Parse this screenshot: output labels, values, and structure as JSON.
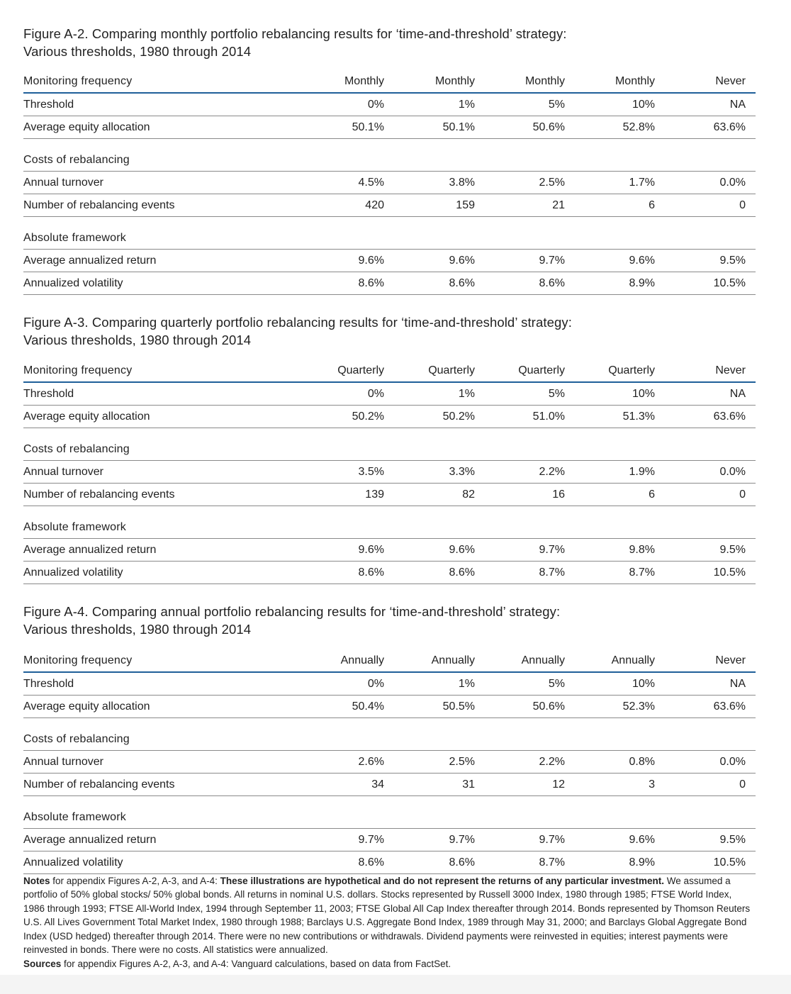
{
  "figures": [
    {
      "title_line1": "Figure A-2. Comparing monthly portfolio rebalancing results for ‘time-and-threshold’ strategy:",
      "title_line2": "Various thresholds, 1980 through 2014",
      "header": {
        "label": "Monitoring frequency",
        "cols": [
          "Monthly",
          "Monthly",
          "Monthly",
          "Monthly",
          "Never"
        ]
      },
      "threshold": {
        "label": "Threshold",
        "cols": [
          "0%",
          "1%",
          "5%",
          "10%",
          "NA"
        ]
      },
      "equity": {
        "label": "Average equity allocation",
        "cols": [
          "50.1%",
          "50.1%",
          "50.6%",
          "52.8%",
          "63.6%"
        ]
      },
      "costs_label": "Costs of rebalancing",
      "turnover": {
        "label": "Annual turnover",
        "cols": [
          "4.5%",
          "3.8%",
          "2.5%",
          "1.7%",
          "0.0%"
        ]
      },
      "events": {
        "label": "Number of rebalancing events",
        "cols": [
          "420",
          "159",
          "21",
          "6",
          "0"
        ]
      },
      "abs_label": "Absolute framework",
      "return": {
        "label": "Average annualized return",
        "cols": [
          "9.6%",
          "9.6%",
          "9.7%",
          "9.6%",
          "9.5%"
        ]
      },
      "volatility": {
        "label": "Annualized volatility",
        "cols": [
          "8.6%",
          "8.6%",
          "8.6%",
          "8.9%",
          "10.5%"
        ]
      }
    },
    {
      "title_line1": "Figure A-3. Comparing quarterly portfolio rebalancing results for ‘time-and-threshold’ strategy:",
      "title_line2": "Various thresholds, 1980 through 2014",
      "header": {
        "label": "Monitoring frequency",
        "cols": [
          "Quarterly",
          "Quarterly",
          "Quarterly",
          "Quarterly",
          "Never"
        ]
      },
      "threshold": {
        "label": "Threshold",
        "cols": [
          "0%",
          "1%",
          "5%",
          "10%",
          "NA"
        ]
      },
      "equity": {
        "label": "Average equity allocation",
        "cols": [
          "50.2%",
          "50.2%",
          "51.0%",
          "51.3%",
          "63.6%"
        ]
      },
      "costs_label": "Costs of rebalancing",
      "turnover": {
        "label": "Annual turnover",
        "cols": [
          "3.5%",
          "3.3%",
          "2.2%",
          "1.9%",
          "0.0%"
        ]
      },
      "events": {
        "label": "Number of rebalancing events",
        "cols": [
          "139",
          "82",
          "16",
          "6",
          "0"
        ]
      },
      "abs_label": "Absolute framework",
      "return": {
        "label": "Average annualized return",
        "cols": [
          "9.6%",
          "9.6%",
          "9.7%",
          "9.8%",
          "9.5%"
        ]
      },
      "volatility": {
        "label": "Annualized volatility",
        "cols": [
          "8.6%",
          "8.6%",
          "8.7%",
          "8.7%",
          "10.5%"
        ]
      }
    },
    {
      "title_line1": "Figure A-4. Comparing annual portfolio rebalancing results for ‘time-and-threshold’ strategy:",
      "title_line2": "Various thresholds, 1980 through 2014",
      "header": {
        "label": "Monitoring frequency",
        "cols": [
          "Annually",
          "Annually",
          "Annually",
          "Annually",
          "Never"
        ]
      },
      "threshold": {
        "label": "Threshold",
        "cols": [
          "0%",
          "1%",
          "5%",
          "10%",
          "NA"
        ]
      },
      "equity": {
        "label": "Average equity allocation",
        "cols": [
          "50.4%",
          "50.5%",
          "50.6%",
          "52.3%",
          "63.6%"
        ]
      },
      "costs_label": "Costs of rebalancing",
      "turnover": {
        "label": "Annual turnover",
        "cols": [
          "2.6%",
          "2.5%",
          "2.2%",
          "0.8%",
          "0.0%"
        ]
      },
      "events": {
        "label": "Number of rebalancing events",
        "cols": [
          "34",
          "31",
          "12",
          "3",
          "0"
        ]
      },
      "abs_label": "Absolute framework",
      "return": {
        "label": "Average annualized return",
        "cols": [
          "9.7%",
          "9.7%",
          "9.7%",
          "9.6%",
          "9.5%"
        ]
      },
      "volatility": {
        "label": "Annualized volatility",
        "cols": [
          "8.6%",
          "8.6%",
          "8.7%",
          "8.9%",
          "10.5%"
        ]
      }
    }
  ],
  "notes": {
    "label": "Notes",
    "intro": " for appendix Figures A-2, A-3, and A-4: ",
    "bold": "These illustrations are hypothetical and do not represent the returns of any particular investment.",
    "body": " We assumed a portfolio of 50% global stocks/ 50% global bonds. All returns in nominal U.S. dollars. Stocks represented by Russell 3000 Index, 1980 through 1985; FTSE World Index, 1986 through 1993; FTSE All-World Index, 1994 through September 11, 2003; FTSE Global All Cap Index thereafter through 2014. Bonds represented by Thomson Reuters U.S. All Lives Government Total Market Index, 1980 through 1988; Barclays U.S. Aggregate Bond Index, 1989 through May 31, 2000; and Barclays Global Aggregate Bond Index (USD hedged) thereafter through 2014. There were no new contributions or withdrawals. Dividend payments were reinvested in equities; interest payments were reinvested in bonds. There were no costs. All statistics were annualized."
  },
  "sources": {
    "label": "Sources",
    "body": " for appendix Figures A-2, A-3, and A-4: Vanguard calculations, based on data from FactSet."
  }
}
